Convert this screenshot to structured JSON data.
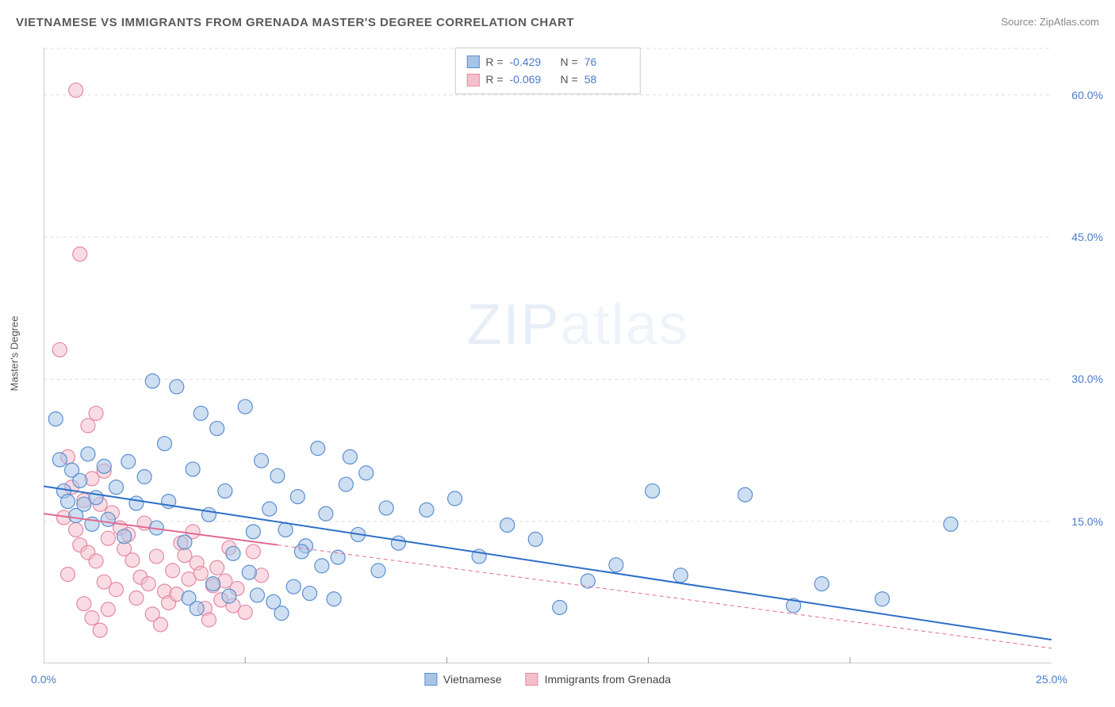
{
  "title": "VIETNAMESE VS IMMIGRANTS FROM GRENADA MASTER'S DEGREE CORRELATION CHART",
  "source": "Source: ZipAtlas.com",
  "ylabel": "Master's Degree",
  "watermark_bold": "ZIP",
  "watermark_thin": "atlas",
  "chart": {
    "type": "scatter",
    "background_color": "#ffffff",
    "grid_color": "#dddddd",
    "axis_color": "#999999",
    "xlim": [
      0,
      25
    ],
    "ylim": [
      0,
      65
    ],
    "xticks_major": [
      0,
      25
    ],
    "xticks_minor": [
      5,
      10,
      15,
      20
    ],
    "yticks_major": [
      15,
      30,
      45,
      60
    ],
    "yticks_label_suffix": "%",
    "marker_radius": 9,
    "marker_opacity": 0.55,
    "marker_stroke_width": 1.2,
    "trendline_width": 2,
    "series": [
      {
        "name": "Vietnamese",
        "color_fill": "#a8c5e8",
        "color_stroke": "#5a8fd0",
        "trend_color": "#2e6fc7",
        "trend_dash": "none",
        "R": "-0.429",
        "N": "76",
        "trend_x": [
          0,
          25
        ],
        "trend_y": [
          18.7,
          2.5
        ],
        "points": [
          [
            0.3,
            25.8
          ],
          [
            0.4,
            21.5
          ],
          [
            0.5,
            18.2
          ],
          [
            0.6,
            17.1
          ],
          [
            0.7,
            20.4
          ],
          [
            0.8,
            15.6
          ],
          [
            0.9,
            19.3
          ],
          [
            1.0,
            16.8
          ],
          [
            1.1,
            22.1
          ],
          [
            1.2,
            14.7
          ],
          [
            1.3,
            17.5
          ],
          [
            1.5,
            20.8
          ],
          [
            1.6,
            15.2
          ],
          [
            1.8,
            18.6
          ],
          [
            2.0,
            13.4
          ],
          [
            2.1,
            21.3
          ],
          [
            2.3,
            16.9
          ],
          [
            2.5,
            19.7
          ],
          [
            2.7,
            29.8
          ],
          [
            2.8,
            14.3
          ],
          [
            3.0,
            23.2
          ],
          [
            3.1,
            17.1
          ],
          [
            3.3,
            29.2
          ],
          [
            3.5,
            12.8
          ],
          [
            3.7,
            20.5
          ],
          [
            3.9,
            26.4
          ],
          [
            4.1,
            15.7
          ],
          [
            4.3,
            24.8
          ],
          [
            4.5,
            18.2
          ],
          [
            4.7,
            11.6
          ],
          [
            5.0,
            27.1
          ],
          [
            5.2,
            13.9
          ],
          [
            5.4,
            21.4
          ],
          [
            5.6,
            16.3
          ],
          [
            5.8,
            19.8
          ],
          [
            6.0,
            14.1
          ],
          [
            6.3,
            17.6
          ],
          [
            6.5,
            12.4
          ],
          [
            6.8,
            22.7
          ],
          [
            7.0,
            15.8
          ],
          [
            7.3,
            11.2
          ],
          [
            7.5,
            18.9
          ],
          [
            7.8,
            13.6
          ],
          [
            8.0,
            20.1
          ],
          [
            8.3,
            9.8
          ],
          [
            8.5,
            16.4
          ],
          [
            5.3,
            7.2
          ],
          [
            5.7,
            6.5
          ],
          [
            6.2,
            8.1
          ],
          [
            6.6,
            7.4
          ],
          [
            6.9,
            10.3
          ],
          [
            7.2,
            6.8
          ],
          [
            3.6,
            6.9
          ],
          [
            3.8,
            5.8
          ],
          [
            4.2,
            8.4
          ],
          [
            4.6,
            7.1
          ],
          [
            5.1,
            9.6
          ],
          [
            5.9,
            5.3
          ],
          [
            6.4,
            11.8
          ],
          [
            7.6,
            21.8
          ],
          [
            8.8,
            12.7
          ],
          [
            9.5,
            16.2
          ],
          [
            10.2,
            17.4
          ],
          [
            10.8,
            11.3
          ],
          [
            11.5,
            14.6
          ],
          [
            12.2,
            13.1
          ],
          [
            12.8,
            5.9
          ],
          [
            13.5,
            8.7
          ],
          [
            14.2,
            10.4
          ],
          [
            15.1,
            18.2
          ],
          [
            15.8,
            9.3
          ],
          [
            17.4,
            17.8
          ],
          [
            18.6,
            6.1
          ],
          [
            19.3,
            8.4
          ],
          [
            20.8,
            6.8
          ],
          [
            22.5,
            14.7
          ]
        ]
      },
      {
        "name": "Immigrants from Grenada",
        "color_fill": "#f4c0cc",
        "color_stroke": "#e589a3",
        "trend_color": "#e06b8f",
        "trend_dash": "5 4",
        "R": "-0.069",
        "N": "58",
        "trend_x": [
          0,
          25
        ],
        "trend_y": [
          15.8,
          1.6
        ],
        "trend_solid_until_x": 5.8,
        "points": [
          [
            0.8,
            60.5
          ],
          [
            0.9,
            43.2
          ],
          [
            0.4,
            33.1
          ],
          [
            1.3,
            26.4
          ],
          [
            1.1,
            25.1
          ],
          [
            0.6,
            21.8
          ],
          [
            1.5,
            20.3
          ],
          [
            0.7,
            18.6
          ],
          [
            1.0,
            17.2
          ],
          [
            1.2,
            19.5
          ],
          [
            0.5,
            15.4
          ],
          [
            0.8,
            14.1
          ],
          [
            1.4,
            16.8
          ],
          [
            1.6,
            13.2
          ],
          [
            0.9,
            12.5
          ],
          [
            1.1,
            11.7
          ],
          [
            1.7,
            15.9
          ],
          [
            1.3,
            10.8
          ],
          [
            1.9,
            14.3
          ],
          [
            0.6,
            9.4
          ],
          [
            1.5,
            8.6
          ],
          [
            2.0,
            12.1
          ],
          [
            1.8,
            7.8
          ],
          [
            2.2,
            10.9
          ],
          [
            1.0,
            6.3
          ],
          [
            2.4,
            9.1
          ],
          [
            1.6,
            5.7
          ],
          [
            2.1,
            13.6
          ],
          [
            2.6,
            8.4
          ],
          [
            1.2,
            4.8
          ],
          [
            2.8,
            11.3
          ],
          [
            2.3,
            6.9
          ],
          [
            3.0,
            7.6
          ],
          [
            1.4,
            3.5
          ],
          [
            2.5,
            14.8
          ],
          [
            3.2,
            9.8
          ],
          [
            2.7,
            5.2
          ],
          [
            3.4,
            12.7
          ],
          [
            2.9,
            4.1
          ],
          [
            3.6,
            8.9
          ],
          [
            3.1,
            6.4
          ],
          [
            3.8,
            10.6
          ],
          [
            3.3,
            7.3
          ],
          [
            4.0,
            5.8
          ],
          [
            3.5,
            11.4
          ],
          [
            4.2,
            8.2
          ],
          [
            3.7,
            13.9
          ],
          [
            4.4,
            6.7
          ],
          [
            3.9,
            9.5
          ],
          [
            4.6,
            12.2
          ],
          [
            4.1,
            4.6
          ],
          [
            4.8,
            7.9
          ],
          [
            4.3,
            10.1
          ],
          [
            5.0,
            5.4
          ],
          [
            4.5,
            8.7
          ],
          [
            5.2,
            11.8
          ],
          [
            4.7,
            6.1
          ],
          [
            5.4,
            9.3
          ]
        ]
      }
    ]
  },
  "stats_legend": {
    "R_label": "R =",
    "N_label": "N ="
  }
}
